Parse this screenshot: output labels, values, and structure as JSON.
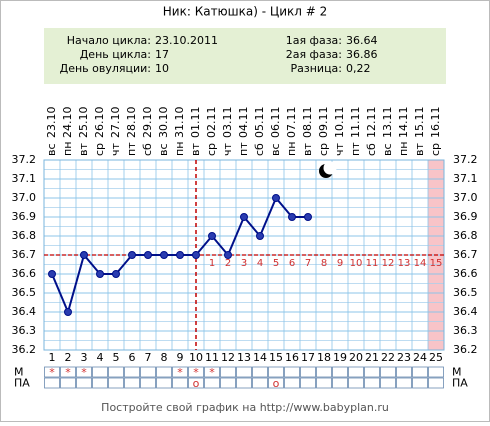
{
  "header": {
    "title": "Ник: Катюшка) - Цикл # 2",
    "info_left": [
      {
        "label": "Начало цикла:",
        "value": "23.10.2011"
      },
      {
        "label": "День цикла:",
        "value": "17"
      },
      {
        "label": "День овуляции:",
        "value": "10"
      }
    ],
    "info_right": [
      {
        "label": "1ая фаза:",
        "value": "36.64"
      },
      {
        "label": "2ая фаза:",
        "value": "36.86"
      },
      {
        "label": "Разница:",
        "value": "0,22"
      }
    ]
  },
  "chart_data": {
    "type": "line",
    "categories": [
      "1",
      "2",
      "3",
      "4",
      "5",
      "6",
      "7",
      "8",
      "9",
      "10",
      "11",
      "12",
      "13",
      "14",
      "15",
      "16",
      "17",
      "18",
      "19",
      "20",
      "21",
      "22",
      "23",
      "24",
      "25"
    ],
    "dates": [
      "23.10",
      "24.10",
      "25.10",
      "26.10",
      "27.10",
      "28.10",
      "29.10",
      "30.10",
      "31.10",
      "01.11",
      "02.11",
      "03.11",
      "04.11",
      "05.11",
      "06.11",
      "07.11",
      "08.11",
      "09.11",
      "10.11",
      "11.11",
      "12.11",
      "13.11",
      "14.11",
      "15.11",
      "16.11"
    ],
    "weekdays": [
      "вс",
      "пн",
      "вт",
      "ср",
      "чт",
      "пт",
      "сб",
      "вс",
      "пн",
      "вт",
      "ср",
      "чт",
      "пт",
      "сб",
      "вс",
      "пн",
      "вт",
      "ср",
      "чт",
      "пт",
      "сб",
      "вс",
      "пн",
      "вт",
      "ср"
    ],
    "series": [
      {
        "name": "temperature",
        "color": "#00108a",
        "values": [
          36.6,
          36.4,
          36.7,
          36.6,
          36.6,
          36.7,
          36.7,
          36.7,
          36.7,
          36.7,
          36.8,
          36.7,
          36.9,
          36.8,
          37.0,
          36.9,
          36.9,
          null,
          null,
          null,
          null,
          null,
          null,
          null,
          null
        ]
      }
    ],
    "luteal_days": [
      null,
      null,
      null,
      null,
      null,
      null,
      null,
      null,
      null,
      null,
      1,
      2,
      3,
      4,
      5,
      6,
      7,
      8,
      9,
      10,
      11,
      12,
      13,
      14,
      15
    ],
    "coverline": 36.7,
    "coverline_color": "#c00000",
    "ovulation_line": 10,
    "highlight_category": 25,
    "ylim": [
      36.2,
      37.2
    ],
    "yticks": [
      36.2,
      36.3,
      36.4,
      36.5,
      36.6,
      36.7,
      36.8,
      36.9,
      {
        "value": 37,
        "label": "37.0"
      },
      37.1,
      37.2
    ],
    "grid": true,
    "rows": [
      {
        "name": "М",
        "cells": [
          "*",
          "*",
          "*",
          null,
          null,
          null,
          null,
          null,
          "*",
          "*",
          "*",
          null,
          null,
          null,
          null,
          null,
          null,
          null,
          null,
          null,
          null,
          null,
          null,
          null,
          null
        ]
      },
      {
        "name": "ПА",
        "cells": [
          null,
          null,
          null,
          null,
          null,
          null,
          null,
          null,
          null,
          "o",
          null,
          null,
          null,
          null,
          "o",
          null,
          null,
          null,
          null,
          null,
          null,
          null,
          null,
          null,
          null
        ]
      }
    ]
  },
  "footer": "Постройте свой график на http://www.babyplan.ru"
}
